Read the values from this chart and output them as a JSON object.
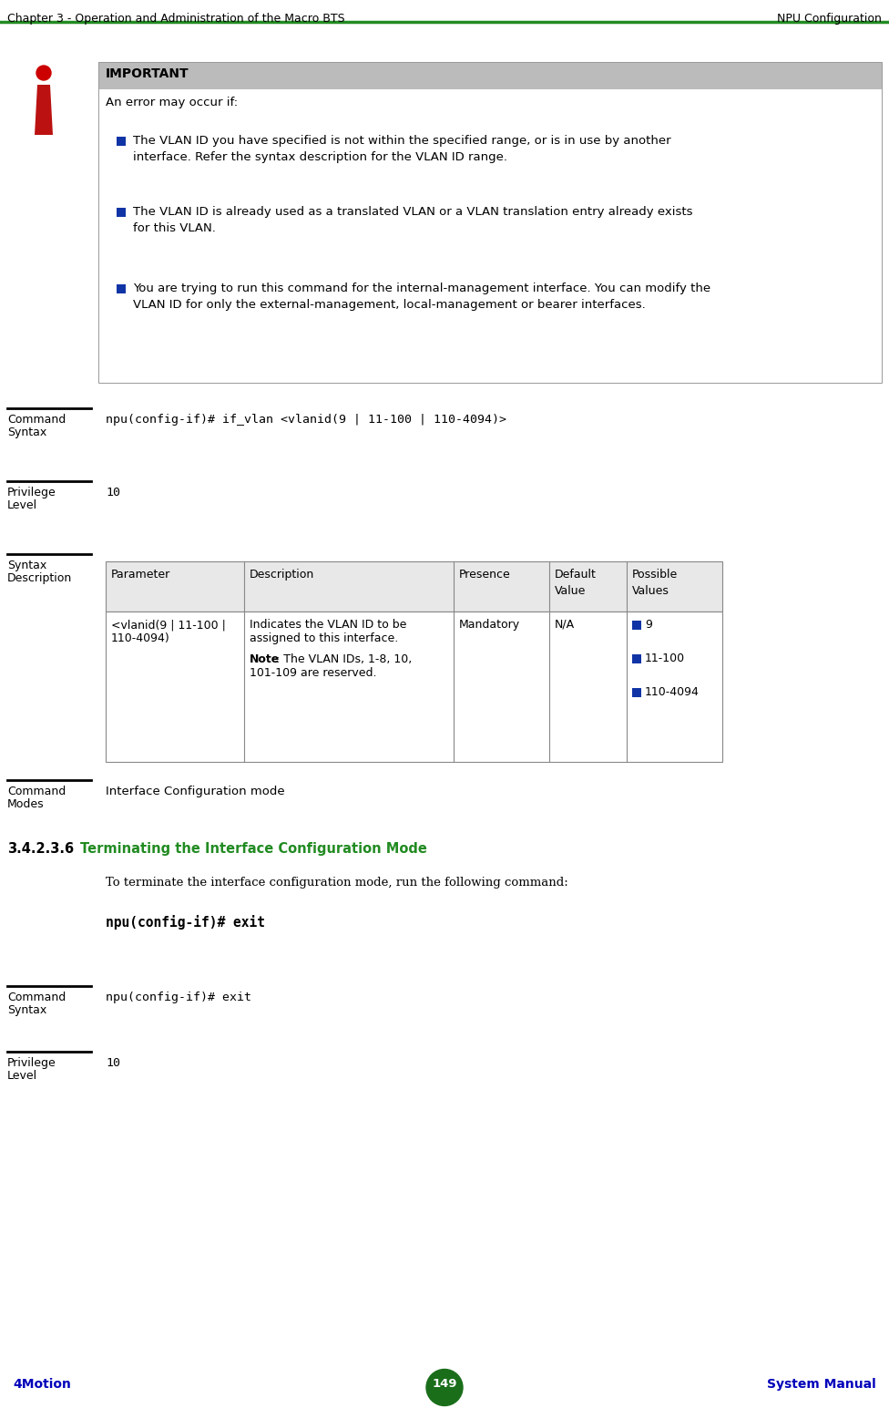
{
  "header_left": "Chapter 3 - Operation and Administration of the Macro BTS",
  "header_right": "NPU Configuration",
  "header_line_color": "#228B22",
  "footer_left": "4Motion",
  "footer_center": "149",
  "footer_right": "System Manual",
  "footer_bg": "#cccccc",
  "footer_text_color": "#0000bb",
  "footer_circle_color": "#1a6e1a",
  "important_bg": "#bbbbbb",
  "important_title": "IMPORTANT",
  "important_intro": "An error may occur if:",
  "bullet_color": "#1034a6",
  "bullet_points_line1": [
    "The VLAN ID you have specified is not within the specified range, or is in use by another",
    "The VLAN ID is already used as a translated VLAN or a VLAN translation entry already exists",
    "You are trying to run this command for the internal-management interface. You can modify the"
  ],
  "bullet_points_line2": [
    "interface. Refer the syntax description for the VLAN ID range.",
    "for this VLAN.",
    "VLAN ID for only the external-management, local-management or bearer interfaces."
  ],
  "divider_color": "#000000",
  "cmd_syntax_label": "Command\nSyntax",
  "cmd_syntax_text": "npu(config-if)# if_vlan <vlanid(9 | 11-100 | 110-4094)>",
  "privilege_label": "Privilege\nLevel",
  "privilege_text": "10",
  "syntax_desc_label": "Syntax\nDescription",
  "table_header": [
    "Parameter",
    "Description",
    "Presence",
    "Default\nValue",
    "Possible\nValues"
  ],
  "table_row_param_l1": "<vlanid(9 | 11-100 |",
  "table_row_param_l2": "110-4094)",
  "table_desc_lines": [
    "Indicates the VLAN ID to be",
    "assigned to this interface.",
    "",
    "Note:",
    "The VLAN IDs, 1-8, 10,",
    "101-109 are reserved."
  ],
  "table_row_presence": "Mandatory",
  "table_row_default": "N/A",
  "table_row_possible": [
    "9",
    "11-100",
    "110-4094"
  ],
  "cmd_modes_label": "Command\nModes",
  "cmd_modes_text": "Interface Configuration mode",
  "section_heading_num": "3.4.2.3.6",
  "section_heading_title": "Terminating the Interface Configuration Mode",
  "section_heading_color": "#228B22",
  "section_intro": "To terminate the interface configuration mode, run the following command:",
  "section_command": "npu(config-if)# exit",
  "cmd_syntax2_label": "Command\nSyntax",
  "cmd_syntax2_text": "npu(config-if)# exit",
  "privilege2_label": "Privilege\nLevel",
  "privilege2_text": "10",
  "bg_color": "#ffffff",
  "icon_head_color": "#cc0000",
  "icon_body_color": "#bb1111"
}
